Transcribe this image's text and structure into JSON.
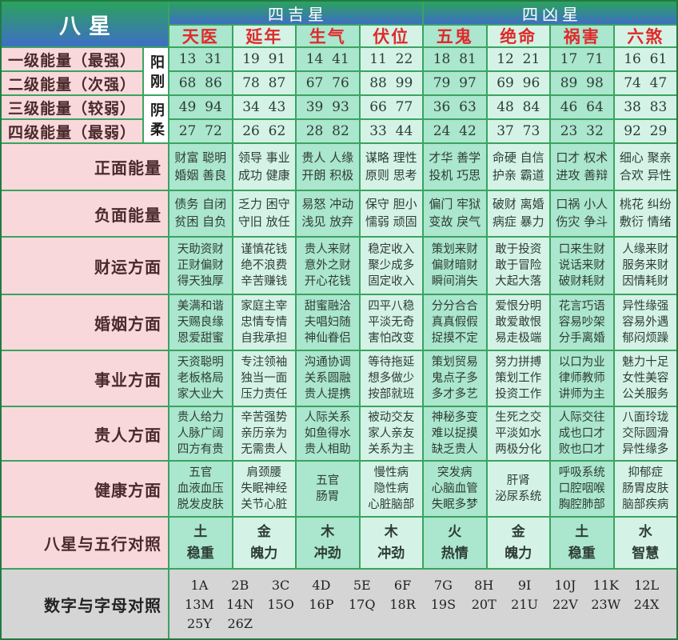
{
  "header": {
    "corner_title": "八星",
    "groups": [
      {
        "label": "四吉星"
      },
      {
        "label": "四凶星"
      }
    ],
    "stars": [
      "天医",
      "延年",
      "生气",
      "伏位",
      "五鬼",
      "绝命",
      "祸害",
      "六煞"
    ]
  },
  "yin_yang": [
    {
      "label": "阳刚"
    },
    {
      "label": "阴柔"
    }
  ],
  "energy_rows": [
    {
      "label": "一级能量（最强）",
      "values": [
        "13  31",
        "19  91",
        "14  41",
        "11  22",
        "18  81",
        "12  21",
        "17  71",
        "16  61"
      ]
    },
    {
      "label": "二级能量（次强）",
      "values": [
        "68  86",
        "78  87",
        "67  76",
        "88  99",
        "79  97",
        "69  96",
        "89  98",
        "74  47"
      ]
    },
    {
      "label": "三级能量（较弱）",
      "values": [
        "49  94",
        "34  43",
        "39  93",
        "66  77",
        "36  63",
        "48  84",
        "46  64",
        "38  83"
      ]
    },
    {
      "label": "四级能量（最弱）",
      "values": [
        "27  72",
        "26  62",
        "28  82",
        "33  44",
        "24  42",
        "37  73",
        "23  32",
        "92  29"
      ]
    }
  ],
  "aspect_rows": [
    {
      "label": "正面能量",
      "cells": [
        [
          "财富 聪明",
          "婚姻 善良"
        ],
        [
          "领导 事业",
          "成功 健康"
        ],
        [
          "贵人 人缘",
          "开朗 积极"
        ],
        [
          "谋略 理性",
          "原则 思考"
        ],
        [
          "才华 善学",
          "投机 巧思"
        ],
        [
          "命硬 自信",
          "护亲 霸道"
        ],
        [
          "口才 权术",
          "进攻 善辩"
        ],
        [
          "细心 聚亲",
          "合欢 异性"
        ]
      ]
    },
    {
      "label": "负面能量",
      "cells": [
        [
          "债务 自闭",
          "贫困 自负"
        ],
        [
          "乏力 困守",
          "守旧 放任"
        ],
        [
          "易怒 冲动",
          "浅见 放弃"
        ],
        [
          "保守 胆小",
          "懦弱 顽固"
        ],
        [
          "偏门 牢狱",
          "变故 戾气"
        ],
        [
          "破财 离婚",
          "病症 暴力"
        ],
        [
          "口祸 小人",
          "伤灾 争斗"
        ],
        [
          "桃花 纠纷",
          "敷衍 情绪"
        ]
      ]
    },
    {
      "label": "财运方面",
      "cells": [
        [
          "天助资财",
          "正财偏财",
          "得天独厚"
        ],
        [
          "谨慎花钱",
          "绝不浪费",
          "辛苦赚钱"
        ],
        [
          "贵人来财",
          "意外之财",
          "开心花钱"
        ],
        [
          "稳定收入",
          "聚少成多",
          "固定收入"
        ],
        [
          "策划来财",
          "偏财暗财",
          "瞬间消失"
        ],
        [
          "敢于投资",
          "敢于冒险",
          "大起大落"
        ],
        [
          "口来生财",
          "说话来财",
          "破财耗财"
        ],
        [
          "人缘来财",
          "服务来财",
          "因情耗财"
        ]
      ]
    },
    {
      "label": "婚姻方面",
      "cells": [
        [
          "美满和谐",
          "天赐良缘",
          "恩爱甜蜜"
        ],
        [
          "家庭主宰",
          "忠情专情",
          "自我承担"
        ],
        [
          "甜蜜融洽",
          "夫唱妇随",
          "神仙眷侣"
        ],
        [
          "四平八稳",
          "平淡无奇",
          "害怕改变"
        ],
        [
          "分分合合",
          "真真假假",
          "捉摸不定"
        ],
        [
          "爱恨分明",
          "敢爱敢恨",
          "易走极端"
        ],
        [
          "花言巧语",
          "容易吵架",
          "分手离婚"
        ],
        [
          "异性缘强",
          "容易外遇",
          "郁闷烦躁"
        ]
      ]
    },
    {
      "label": "事业方面",
      "cells": [
        [
          "天资聪明",
          "老板格局",
          "家大业大"
        ],
        [
          "专注领袖",
          "独当一面",
          "压力责任"
        ],
        [
          "沟通协调",
          "关系圆融",
          "贵人提携"
        ],
        [
          "等待拖延",
          "想多做少",
          "按部就班"
        ],
        [
          "策划贸易",
          "鬼点子多",
          "多才多艺"
        ],
        [
          "努力拼搏",
          "策划工作",
          "投资工作"
        ],
        [
          "以口为业",
          "律师教师",
          "讲师为主"
        ],
        [
          "魅力十足",
          "女性美容",
          "公关服务"
        ]
      ]
    },
    {
      "label": "贵人方面",
      "cells": [
        [
          "贵人给力",
          "人脉广阔",
          "四方有贵"
        ],
        [
          "辛苦强势",
          "亲历亲为",
          "无需贵人"
        ],
        [
          "人际关系",
          "如鱼得水",
          "贵人相助"
        ],
        [
          "被动交友",
          "家人亲友",
          "关系为主"
        ],
        [
          "神秘多变",
          "难以捉摸",
          "缺乏贵人"
        ],
        [
          "生死之交",
          "平淡如水",
          "两极分化"
        ],
        [
          "人际交往",
          "成也口才",
          "败也口才"
        ],
        [
          "八面玲珑",
          "交际圆滑",
          "异性缘多"
        ]
      ]
    },
    {
      "label": "健康方面",
      "cells": [
        [
          "五官",
          "血液血压",
          "脱发皮肤"
        ],
        [
          "肩颈腰",
          "失眠神经",
          "关节心脏"
        ],
        [
          "五官",
          "肠胃"
        ],
        [
          "慢性病",
          "隐性病",
          "心脏脑部"
        ],
        [
          "突发病",
          "心脑血管",
          "失眠多梦"
        ],
        [
          "肝肾",
          "泌尿系统"
        ],
        [
          "呼吸系统",
          "口腔咽喉",
          "胸腔肺部"
        ],
        [
          "抑郁症",
          "肠胃皮肤",
          "脑部疾病"
        ]
      ]
    },
    {
      "label": "八星与五行对照",
      "cells": [
        [
          "土",
          "稳重"
        ],
        [
          "金",
          "魄力"
        ],
        [
          "木",
          "冲劲"
        ],
        [
          "木",
          "冲劲"
        ],
        [
          "火",
          "热情"
        ],
        [
          "金",
          "魄力"
        ],
        [
          "土",
          "稳重"
        ],
        [
          "水",
          "智慧"
        ]
      ]
    }
  ],
  "alphabet_row": {
    "label": "数字与字母对照",
    "lines": [
      [
        "1A",
        "2B",
        "3C",
        "4D",
        "5E",
        "6F",
        "7G",
        "8H",
        "9I",
        "10J",
        "11K",
        "12L"
      ],
      [
        "13M",
        "14N",
        "15O",
        "16P",
        "17Q",
        "18R",
        "19S",
        "20T",
        "21U",
        "22V",
        "23W",
        "24X"
      ],
      [
        "25Y",
        "26Z"
      ]
    ]
  },
  "colors": {
    "header_grad_top": "#2ba35d",
    "header_grad_bottom": "#3e6ec5",
    "header_text": "#ffffff",
    "star_text": "#e02a2a",
    "mint_dark": "#abe6cf",
    "mint_light": "#d4f3e6",
    "pink": "#f9d8db",
    "label_text": "#4a2a2a",
    "cell_text": "#2e3d36",
    "gray": "#d5d5d5",
    "border_green": "#3aa45f",
    "outer_border": "#227a43"
  }
}
